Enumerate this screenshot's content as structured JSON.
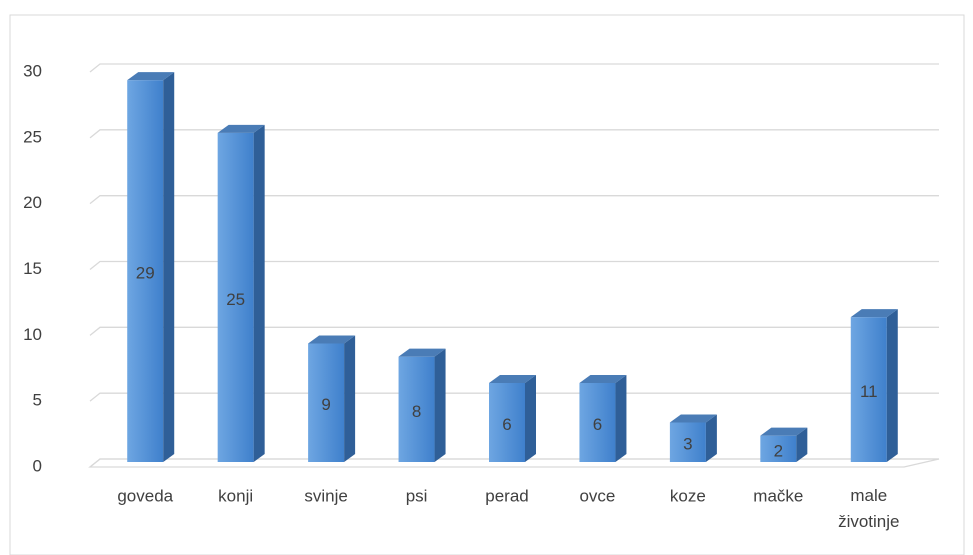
{
  "chart_data": {
    "type": "bar3d",
    "categories": [
      "goveda",
      "konji",
      "svinje",
      "psi",
      "perad",
      "ovce",
      "koze",
      "mačke",
      "male životinje"
    ],
    "values": [
      29,
      25,
      9,
      8,
      6,
      6,
      3,
      2,
      11
    ],
    "color": "#4a8ad4",
    "ylim": [
      0,
      30
    ],
    "yticks": [
      0,
      5,
      10,
      15,
      20,
      25,
      30
    ],
    "grid": true
  }
}
